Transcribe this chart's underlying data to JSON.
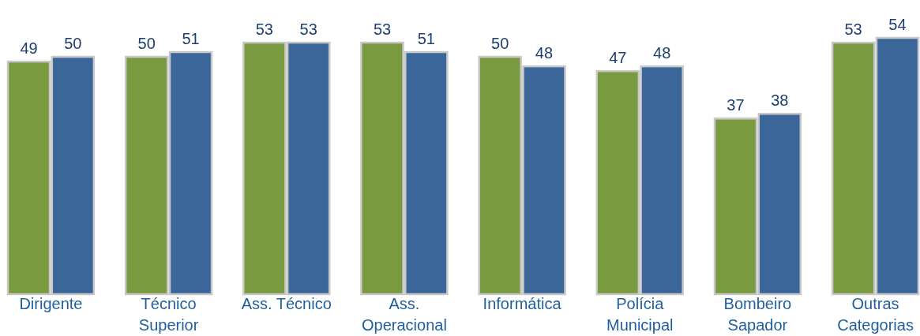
{
  "chart_data": {
    "type": "bar",
    "categories": [
      "Dirigente",
      "Técnico Superior",
      "Ass. Técnico",
      "Ass. Operacional",
      "Informática",
      "Polícia Municipal",
      "Bombeiro Sapador",
      "Outras Categorias"
    ],
    "series": [
      {
        "color": "#7a9a3f",
        "values": [
          49,
          50,
          53,
          53,
          50,
          47,
          37,
          53
        ]
      },
      {
        "color": "#3a6699",
        "values": [
          50,
          51,
          53,
          51,
          48,
          48,
          38,
          54
        ]
      }
    ],
    "data_labels": true,
    "tick_labels": "x"
  }
}
